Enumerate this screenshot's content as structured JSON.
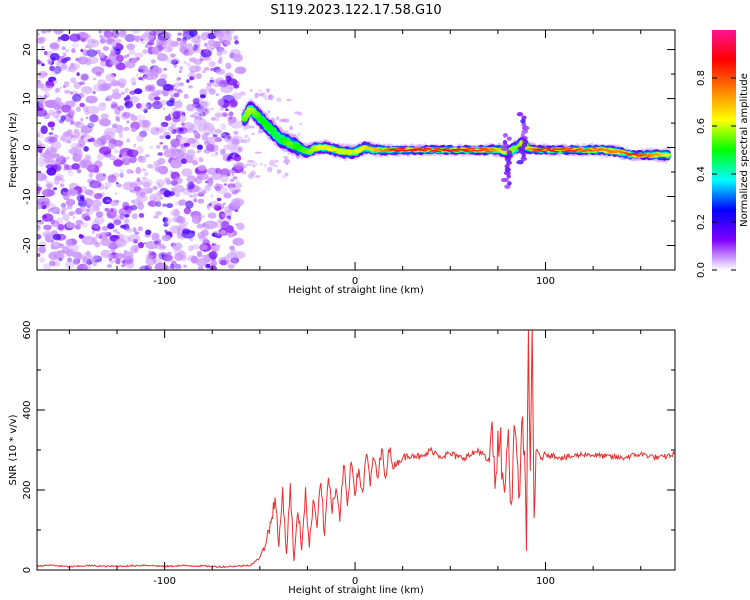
{
  "title": "S119.2023.122.17.58.G10",
  "chart_data": [
    {
      "type": "heatmap",
      "xlabel": "Height of straight line (km)",
      "ylabel": "Frequency (Hz)",
      "xlim": [
        -167,
        168
      ],
      "ylim": [
        -25,
        24
      ],
      "x_ticks": [
        -100,
        0,
        100
      ],
      "y_ticks": [
        -20,
        -10,
        0,
        10,
        20
      ],
      "colorbar": {
        "label": "Normalized spectral amplitude",
        "range": [
          0,
          1
        ],
        "ticks": [
          0.0,
          0.2,
          0.4,
          0.6,
          0.8
        ],
        "colors": [
          "#ffffff",
          "#8000ff",
          "#0000ff",
          "#00ffff",
          "#00ff00",
          "#ffff00",
          "#ff8000",
          "#ff0000",
          "#ff1493"
        ]
      },
      "noise_region_x": [
        -167,
        -60
      ],
      "ridge": [
        {
          "x": -58,
          "freq": 6.0,
          "amp": 0.55
        },
        {
          "x": -55,
          "freq": 8.0,
          "amp": 0.6
        },
        {
          "x": -50,
          "freq": 6.0,
          "amp": 0.5
        },
        {
          "x": -45,
          "freq": 4.0,
          "amp": 0.5
        },
        {
          "x": -40,
          "freq": 2.0,
          "amp": 0.45
        },
        {
          "x": -35,
          "freq": 1.0,
          "amp": 0.55
        },
        {
          "x": -30,
          "freq": 0.0,
          "amp": 0.5
        },
        {
          "x": -25,
          "freq": -1.0,
          "amp": 0.55
        },
        {
          "x": -20,
          "freq": 0.0,
          "amp": 0.6
        },
        {
          "x": -15,
          "freq": 0.0,
          "amp": 0.65
        },
        {
          "x": -10,
          "freq": -0.5,
          "amp": 0.6
        },
        {
          "x": -5,
          "freq": -1.0,
          "amp": 0.6
        },
        {
          "x": 0,
          "freq": -1.0,
          "amp": 0.6
        },
        {
          "x": 5,
          "freq": 0.0,
          "amp": 0.65
        },
        {
          "x": 10,
          "freq": -0.5,
          "amp": 0.7
        },
        {
          "x": 15,
          "freq": -0.5,
          "amp": 0.75
        },
        {
          "x": 20,
          "freq": -0.5,
          "amp": 0.85
        },
        {
          "x": 30,
          "freq": -0.5,
          "amp": 0.85
        },
        {
          "x": 40,
          "freq": -0.5,
          "amp": 0.85
        },
        {
          "x": 50,
          "freq": -0.5,
          "amp": 0.85
        },
        {
          "x": 60,
          "freq": -0.5,
          "amp": 0.85
        },
        {
          "x": 70,
          "freq": -0.5,
          "amp": 0.8
        },
        {
          "x": 75,
          "freq": -0.5,
          "amp": 0.7
        },
        {
          "x": 80,
          "freq": -1.0,
          "amp": 0.6
        },
        {
          "x": 85,
          "freq": 0.0,
          "amp": 0.55
        },
        {
          "x": 88,
          "freq": 1.0,
          "amp": 0.6
        },
        {
          "x": 90,
          "freq": 0.0,
          "amp": 0.65
        },
        {
          "x": 95,
          "freq": -0.5,
          "amp": 0.85
        },
        {
          "x": 100,
          "freq": -0.5,
          "amp": 0.85
        },
        {
          "x": 110,
          "freq": -0.5,
          "amp": 0.85
        },
        {
          "x": 120,
          "freq": -0.5,
          "amp": 0.8
        },
        {
          "x": 130,
          "freq": -0.5,
          "amp": 0.75
        },
        {
          "x": 140,
          "freq": -1.0,
          "amp": 0.75
        },
        {
          "x": 145,
          "freq": -1.5,
          "amp": 0.85
        },
        {
          "x": 150,
          "freq": -1.5,
          "amp": 0.85
        },
        {
          "x": 155,
          "freq": -1.5,
          "amp": 0.75
        },
        {
          "x": 160,
          "freq": -1.5,
          "amp": 0.7
        },
        {
          "x": 165,
          "freq": -1.5,
          "amp": 0.6
        }
      ]
    },
    {
      "type": "line",
      "xlabel": "Height of straight line (km)",
      "ylabel": "SNR (10 * v/v)",
      "xlim": [
        -167,
        168
      ],
      "ylim": [
        0,
        600
      ],
      "x_ticks": [
        -100,
        0,
        100
      ],
      "y_ticks": [
        0,
        200,
        400,
        600
      ],
      "color": "#e83030",
      "x": [
        -167,
        -160,
        -150,
        -140,
        -130,
        -120,
        -110,
        -100,
        -90,
        -80,
        -70,
        -60,
        -55,
        -50,
        -45,
        -42,
        -40,
        -38,
        -36,
        -34,
        -32,
        -30,
        -28,
        -26,
        -24,
        -22,
        -20,
        -18,
        -16,
        -14,
        -12,
        -10,
        -8,
        -6,
        -4,
        -2,
        0,
        2,
        4,
        6,
        8,
        10,
        12,
        14,
        16,
        18,
        20,
        25,
        30,
        35,
        40,
        45,
        50,
        55,
        60,
        65,
        70,
        72,
        74,
        76,
        78,
        80,
        82,
        84,
        86,
        88,
        90,
        91,
        92,
        93,
        94,
        95,
        96,
        98,
        100,
        105,
        110,
        120,
        130,
        140,
        150,
        160,
        168
      ],
      "y": [
        10,
        12,
        8,
        11,
        9,
        10,
        12,
        9,
        11,
        10,
        8,
        10,
        12,
        30,
        100,
        180,
        60,
        200,
        40,
        210,
        20,
        150,
        60,
        200,
        50,
        180,
        120,
        230,
        80,
        240,
        150,
        200,
        120,
        270,
        160,
        280,
        200,
        250,
        190,
        290,
        220,
        280,
        230,
        300,
        240,
        300,
        260,
        280,
        290,
        280,
        300,
        285,
        290,
        280,
        285,
        300,
        270,
        320,
        240,
        330,
        200,
        340,
        180,
        380,
        150,
        420,
        60,
        600,
        200,
        600,
        130,
        300,
        290,
        280,
        290,
        285,
        280,
        290,
        285,
        280,
        290,
        280,
        290
      ]
    }
  ]
}
